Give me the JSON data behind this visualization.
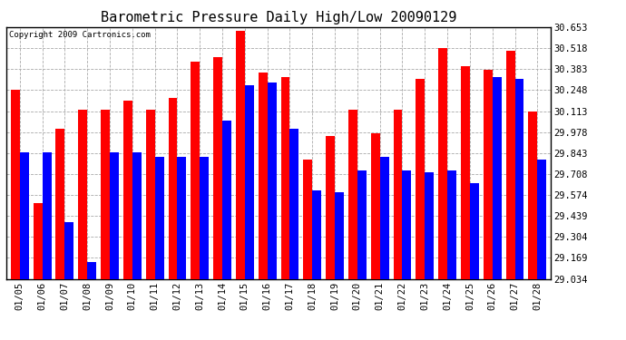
{
  "title": "Barometric Pressure Daily High/Low 20090129",
  "copyright": "Copyright 2009 Cartronics.com",
  "dates": [
    "01/05",
    "01/06",
    "01/07",
    "01/08",
    "01/09",
    "01/10",
    "01/11",
    "01/12",
    "01/13",
    "01/14",
    "01/15",
    "01/16",
    "01/17",
    "01/18",
    "01/19",
    "01/20",
    "01/21",
    "01/22",
    "01/23",
    "01/24",
    "01/25",
    "01/26",
    "01/27",
    "01/28"
  ],
  "highs": [
    30.25,
    29.52,
    30.0,
    30.12,
    30.12,
    30.18,
    30.12,
    30.2,
    30.43,
    30.46,
    30.63,
    30.36,
    30.33,
    29.8,
    29.95,
    30.12,
    29.97,
    30.12,
    30.32,
    30.52,
    30.4,
    30.38,
    30.5,
    30.11
  ],
  "lows": [
    29.85,
    29.85,
    29.4,
    29.14,
    29.85,
    29.85,
    29.82,
    29.82,
    29.82,
    30.05,
    30.28,
    30.3,
    30.0,
    29.6,
    29.59,
    29.73,
    29.82,
    29.73,
    29.72,
    29.73,
    29.65,
    30.33,
    30.32,
    29.8
  ],
  "high_color": "#ff0000",
  "low_color": "#0000ff",
  "bg_color": "#ffffff",
  "grid_color": "#aaaaaa",
  "yticks": [
    29.034,
    29.169,
    29.304,
    29.439,
    29.574,
    29.708,
    29.843,
    29.978,
    30.113,
    30.248,
    30.383,
    30.518,
    30.653
  ],
  "ymin": 29.034,
  "ymax": 30.653,
  "bar_width": 0.4,
  "title_fontsize": 11,
  "tick_fontsize": 7.5,
  "copyright_fontsize": 6.5
}
